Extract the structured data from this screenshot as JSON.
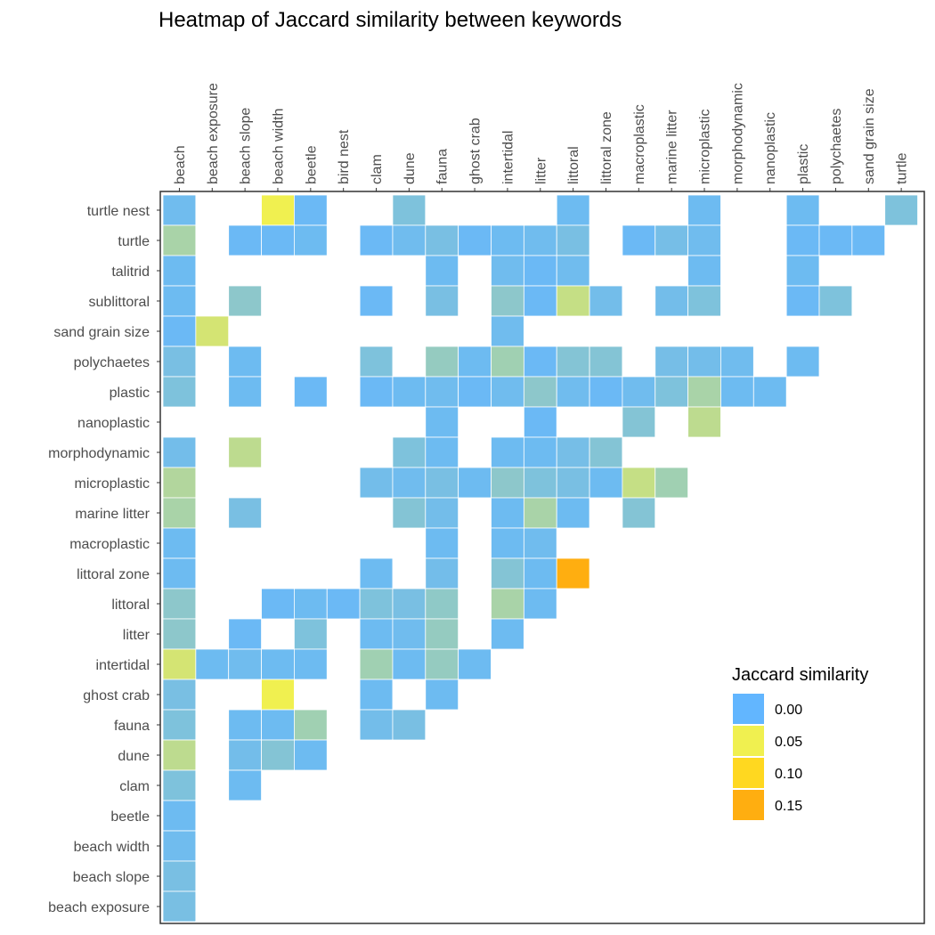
{
  "chart_data": {
    "type": "heatmap",
    "title": "Heatmap of Jaccard similarity between keywords",
    "x_categories": [
      "beach",
      "beach exposure",
      "beach slope",
      "beach width",
      "beetle",
      "bird nest",
      "clam",
      "dune",
      "fauna",
      "ghost crab",
      "intertidal",
      "litter",
      "littoral",
      "littoral zone",
      "macroplastic",
      "marine litter",
      "microplastic",
      "morphodynamic",
      "nanoplastic",
      "plastic",
      "polychaetes",
      "sand grain size",
      "turtle"
    ],
    "y_categories": [
      "turtle nest",
      "turtle",
      "talitrid",
      "sublittoral",
      "sand grain size",
      "polychaetes",
      "plastic",
      "nanoplastic",
      "morphodynamic",
      "microplastic",
      "marine litter",
      "macroplastic",
      "littoral zone",
      "littoral",
      "litter",
      "intertidal",
      "ghost crab",
      "fauna",
      "dune",
      "clam",
      "beetle",
      "beach width",
      "beach slope",
      "beach exposure"
    ],
    "cells": [
      [
        "turtle nest",
        "beach",
        0.005
      ],
      [
        "turtle nest",
        "beach width",
        0.05
      ],
      [
        "turtle nest",
        "beetle",
        0.003
      ],
      [
        "turtle nest",
        "dune",
        0.01
      ],
      [
        "turtle nest",
        "littoral",
        0.004
      ],
      [
        "turtle nest",
        "microplastic",
        0.004
      ],
      [
        "turtle nest",
        "plastic",
        0.004
      ],
      [
        "turtle nest",
        "turtle",
        0.01
      ],
      [
        "turtle",
        "beach",
        0.025
      ],
      [
        "turtle",
        "beach slope",
        0.003
      ],
      [
        "turtle",
        "beach width",
        0.003
      ],
      [
        "turtle",
        "beetle",
        0.004
      ],
      [
        "turtle",
        "clam",
        0.003
      ],
      [
        "turtle",
        "dune",
        0.005
      ],
      [
        "turtle",
        "fauna",
        0.008
      ],
      [
        "turtle",
        "ghost crab",
        0.003
      ],
      [
        "turtle",
        "intertidal",
        0.004
      ],
      [
        "turtle",
        "litter",
        0.005
      ],
      [
        "turtle",
        "littoral",
        0.008
      ],
      [
        "turtle",
        "macroplastic",
        0.003
      ],
      [
        "turtle",
        "marine litter",
        0.007
      ],
      [
        "turtle",
        "microplastic",
        0.005
      ],
      [
        "turtle",
        "plastic",
        0.003
      ],
      [
        "turtle",
        "polychaetes",
        0.003
      ],
      [
        "turtle",
        "sand grain size",
        0.003
      ],
      [
        "talitrid",
        "beach",
        0.004
      ],
      [
        "talitrid",
        "fauna",
        0.004
      ],
      [
        "talitrid",
        "intertidal",
        0.005
      ],
      [
        "talitrid",
        "litter",
        0.003
      ],
      [
        "talitrid",
        "littoral",
        0.005
      ],
      [
        "talitrid",
        "microplastic",
        0.004
      ],
      [
        "talitrid",
        "plastic",
        0.004
      ],
      [
        "sublittoral",
        "beach",
        0.004
      ],
      [
        "sublittoral",
        "beach slope",
        0.015
      ],
      [
        "sublittoral",
        "clam",
        0.003
      ],
      [
        "sublittoral",
        "fauna",
        0.008
      ],
      [
        "sublittoral",
        "intertidal",
        0.015
      ],
      [
        "sublittoral",
        "litter",
        0.003
      ],
      [
        "sublittoral",
        "littoral",
        0.035
      ],
      [
        "sublittoral",
        "littoral zone",
        0.006
      ],
      [
        "sublittoral",
        "marine litter",
        0.006
      ],
      [
        "sublittoral",
        "microplastic",
        0.01
      ],
      [
        "sublittoral",
        "plastic",
        0.003
      ],
      [
        "sublittoral",
        "polychaetes",
        0.01
      ],
      [
        "sand grain size",
        "beach",
        0.003
      ],
      [
        "sand grain size",
        "beach exposure",
        0.04
      ],
      [
        "sand grain size",
        "intertidal",
        0.005
      ],
      [
        "polychaetes",
        "beach",
        0.008
      ],
      [
        "polychaetes",
        "beach slope",
        0.004
      ],
      [
        "polychaetes",
        "clam",
        0.01
      ],
      [
        "polychaetes",
        "fauna",
        0.018
      ],
      [
        "polychaetes",
        "ghost crab",
        0.004
      ],
      [
        "polychaetes",
        "intertidal",
        0.022
      ],
      [
        "polychaetes",
        "litter",
        0.003
      ],
      [
        "polychaetes",
        "littoral",
        0.012
      ],
      [
        "polychaetes",
        "littoral zone",
        0.012
      ],
      [
        "polychaetes",
        "marine litter",
        0.007
      ],
      [
        "polychaetes",
        "microplastic",
        0.006
      ],
      [
        "polychaetes",
        "morphodynamic",
        0.005
      ],
      [
        "polychaetes",
        "plastic",
        0.004
      ],
      [
        "plastic",
        "beach",
        0.01
      ],
      [
        "plastic",
        "beach slope",
        0.004
      ],
      [
        "plastic",
        "beetle",
        0.003
      ],
      [
        "plastic",
        "clam",
        0.003
      ],
      [
        "plastic",
        "dune",
        0.004
      ],
      [
        "plastic",
        "fauna",
        0.005
      ],
      [
        "plastic",
        "ghost crab",
        0.003
      ],
      [
        "plastic",
        "intertidal",
        0.005
      ],
      [
        "plastic",
        "litter",
        0.015
      ],
      [
        "plastic",
        "littoral",
        0.005
      ],
      [
        "plastic",
        "littoral zone",
        0.003
      ],
      [
        "plastic",
        "macroplastic",
        0.005
      ],
      [
        "plastic",
        "marine litter",
        0.01
      ],
      [
        "plastic",
        "microplastic",
        0.025
      ],
      [
        "plastic",
        "morphodynamic",
        0.004
      ],
      [
        "plastic",
        "nanoplastic",
        0.004
      ],
      [
        "nanoplastic",
        "fauna",
        0.004
      ],
      [
        "nanoplastic",
        "litter",
        0.003
      ],
      [
        "nanoplastic",
        "macroplastic",
        0.012
      ],
      [
        "nanoplastic",
        "microplastic",
        0.032
      ],
      [
        "morphodynamic",
        "beach",
        0.006
      ],
      [
        "morphodynamic",
        "beach slope",
        0.032
      ],
      [
        "morphodynamic",
        "dune",
        0.01
      ],
      [
        "morphodynamic",
        "fauna",
        0.004
      ],
      [
        "morphodynamic",
        "intertidal",
        0.004
      ],
      [
        "morphodynamic",
        "litter",
        0.004
      ],
      [
        "morphodynamic",
        "littoral",
        0.007
      ],
      [
        "morphodynamic",
        "littoral zone",
        0.012
      ],
      [
        "microplastic",
        "beach",
        0.028
      ],
      [
        "microplastic",
        "clam",
        0.006
      ],
      [
        "microplastic",
        "dune",
        0.005
      ],
      [
        "microplastic",
        "fauna",
        0.008
      ],
      [
        "microplastic",
        "ghost crab",
        0.004
      ],
      [
        "microplastic",
        "intertidal",
        0.015
      ],
      [
        "microplastic",
        "litter",
        0.01
      ],
      [
        "microplastic",
        "littoral",
        0.008
      ],
      [
        "microplastic",
        "littoral zone",
        0.004
      ],
      [
        "microplastic",
        "macroplastic",
        0.035
      ],
      [
        "microplastic",
        "marine litter",
        0.022
      ],
      [
        "marine litter",
        "beach",
        0.025
      ],
      [
        "marine litter",
        "beach slope",
        0.008
      ],
      [
        "marine litter",
        "dune",
        0.012
      ],
      [
        "marine litter",
        "fauna",
        0.006
      ],
      [
        "marine litter",
        "intertidal",
        0.004
      ],
      [
        "marine litter",
        "litter",
        0.025
      ],
      [
        "marine litter",
        "littoral",
        0.004
      ],
      [
        "marine litter",
        "macroplastic",
        0.012
      ],
      [
        "macroplastic",
        "beach",
        0.004
      ],
      [
        "macroplastic",
        "fauna",
        0.004
      ],
      [
        "macroplastic",
        "intertidal",
        0.004
      ],
      [
        "macroplastic",
        "litter",
        0.005
      ],
      [
        "littoral zone",
        "beach",
        0.004
      ],
      [
        "littoral zone",
        "clam",
        0.004
      ],
      [
        "littoral zone",
        "fauna",
        0.006
      ],
      [
        "littoral zone",
        "intertidal",
        0.012
      ],
      [
        "littoral zone",
        "litter",
        0.004
      ],
      [
        "littoral zone",
        "littoral",
        0.15
      ],
      [
        "littoral",
        "beach",
        0.015
      ],
      [
        "littoral",
        "beach width",
        0.003
      ],
      [
        "littoral",
        "beetle",
        0.004
      ],
      [
        "littoral",
        "bird nest",
        0.003
      ],
      [
        "littoral",
        "clam",
        0.01
      ],
      [
        "littoral",
        "dune",
        0.008
      ],
      [
        "littoral",
        "fauna",
        0.016
      ],
      [
        "littoral",
        "intertidal",
        0.025
      ],
      [
        "littoral",
        "litter",
        0.004
      ],
      [
        "litter",
        "beach",
        0.015
      ],
      [
        "litter",
        "beach slope",
        0.003
      ],
      [
        "litter",
        "beetle",
        0.01
      ],
      [
        "litter",
        "clam",
        0.004
      ],
      [
        "litter",
        "dune",
        0.005
      ],
      [
        "litter",
        "fauna",
        0.018
      ],
      [
        "litter",
        "intertidal",
        0.004
      ],
      [
        "intertidal",
        "beach",
        0.04
      ],
      [
        "intertidal",
        "beach exposure",
        0.004
      ],
      [
        "intertidal",
        "beach slope",
        0.005
      ],
      [
        "intertidal",
        "beach width",
        0.004
      ],
      [
        "intertidal",
        "beetle",
        0.004
      ],
      [
        "intertidal",
        "clam",
        0.022
      ],
      [
        "intertidal",
        "dune",
        0.004
      ],
      [
        "intertidal",
        "fauna",
        0.018
      ],
      [
        "intertidal",
        "ghost crab",
        0.004
      ],
      [
        "ghost crab",
        "beach",
        0.008
      ],
      [
        "ghost crab",
        "beach width",
        0.05
      ],
      [
        "ghost crab",
        "clam",
        0.004
      ],
      [
        "ghost crab",
        "fauna",
        0.004
      ],
      [
        "fauna",
        "beach",
        0.01
      ],
      [
        "fauna",
        "beach slope",
        0.004
      ],
      [
        "fauna",
        "beach width",
        0.004
      ],
      [
        "fauna",
        "beetle",
        0.022
      ],
      [
        "fauna",
        "clam",
        0.006
      ],
      [
        "fauna",
        "dune",
        0.008
      ],
      [
        "dune",
        "beach",
        0.032
      ],
      [
        "dune",
        "beach slope",
        0.006
      ],
      [
        "dune",
        "beach width",
        0.012
      ],
      [
        "dune",
        "beetle",
        0.004
      ],
      [
        "clam",
        "beach",
        0.01
      ],
      [
        "clam",
        "beach slope",
        0.004
      ],
      [
        "beetle",
        "beach",
        0.004
      ],
      [
        "beach width",
        "beach",
        0.005
      ],
      [
        "beach slope",
        "beach",
        0.008
      ],
      [
        "beach exposure",
        "beach",
        0.008
      ]
    ],
    "legend": {
      "title": "Jaccard similarity",
      "breaks": [
        0.0,
        0.05,
        0.1,
        0.15
      ],
      "labels": [
        "0.00",
        "0.05",
        "0.10",
        "0.15"
      ],
      "colors": [
        "#62b6ff",
        "#f0f050",
        "#ffd820",
        "#ffae10"
      ],
      "position": "right"
    },
    "color_scale": {
      "stops": [
        {
          "value": 0.0,
          "color": "#62b6ff"
        },
        {
          "value": 0.05,
          "color": "#f0f050"
        },
        {
          "value": 0.1,
          "color": "#ffd820"
        },
        {
          "value": 0.15,
          "color": "#ffae10"
        }
      ]
    },
    "grid": false
  }
}
